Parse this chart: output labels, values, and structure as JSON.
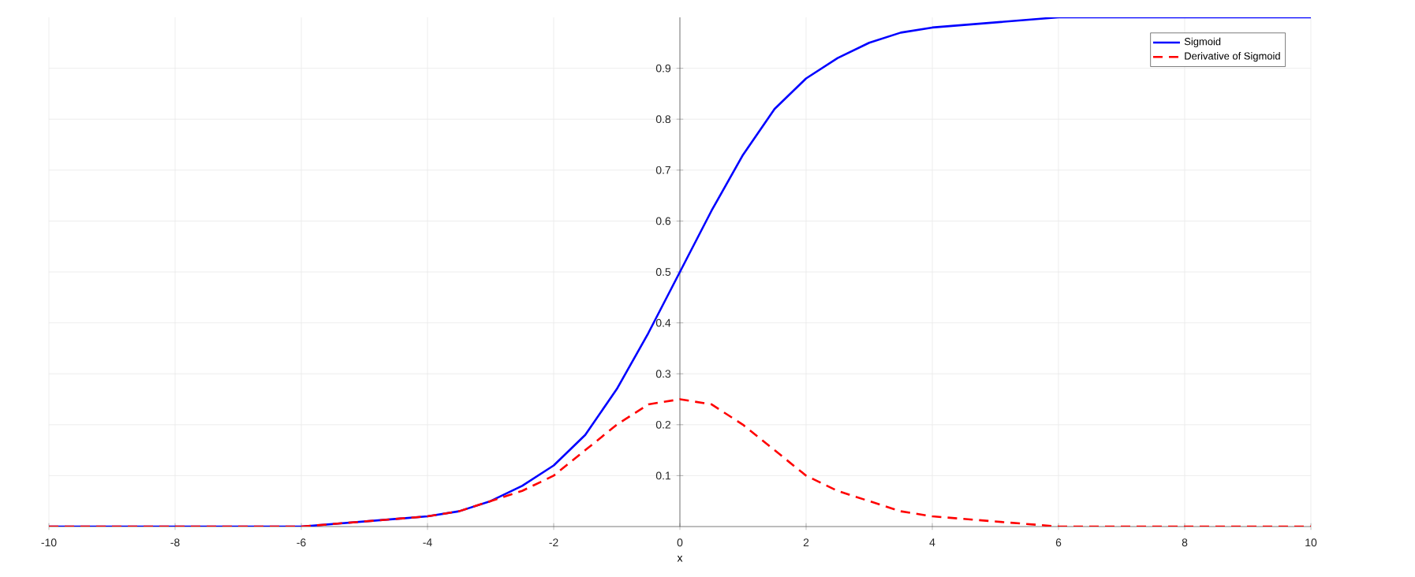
{
  "chart_data": {
    "type": "line",
    "xlabel": "x",
    "x": [
      -10,
      -8,
      -6,
      -5,
      -4,
      -3.5,
      -3,
      -2.5,
      -2,
      -1.5,
      -1,
      -0.5,
      0,
      0.5,
      1,
      1.5,
      2,
      2.5,
      3,
      3.5,
      4,
      5,
      6,
      8,
      10
    ],
    "series": [
      {
        "name": "Sigmoid",
        "color": "#0000ff",
        "line_style": "solid",
        "values": [
          0,
          0,
          0,
          0.01,
          0.02,
          0.03,
          0.05,
          0.08,
          0.12,
          0.18,
          0.27,
          0.38,
          0.5,
          0.62,
          0.73,
          0.82,
          0.88,
          0.92,
          0.95,
          0.97,
          0.98,
          0.99,
          1,
          1,
          1
        ]
      },
      {
        "name": "Derivative of Sigmoid",
        "color": "#ff0000",
        "line_style": "dashed",
        "values": [
          0,
          0,
          0,
          0.01,
          0.02,
          0.03,
          0.05,
          0.07,
          0.1,
          0.15,
          0.2,
          0.24,
          0.25,
          0.24,
          0.2,
          0.15,
          0.1,
          0.07,
          0.05,
          0.03,
          0.02,
          0.01,
          0,
          0,
          0
        ]
      }
    ],
    "xlim": [
      -10,
      10
    ],
    "ylim": [
      0,
      1
    ],
    "xticks": [
      -10,
      -8,
      -6,
      -4,
      -2,
      0,
      2,
      4,
      6,
      8,
      10
    ],
    "yticks": [
      0.1,
      0.2,
      0.3,
      0.4,
      0.5,
      0.6,
      0.7,
      0.8,
      0.9
    ],
    "grid": true,
    "legend": "top right",
    "marker": "none"
  }
}
